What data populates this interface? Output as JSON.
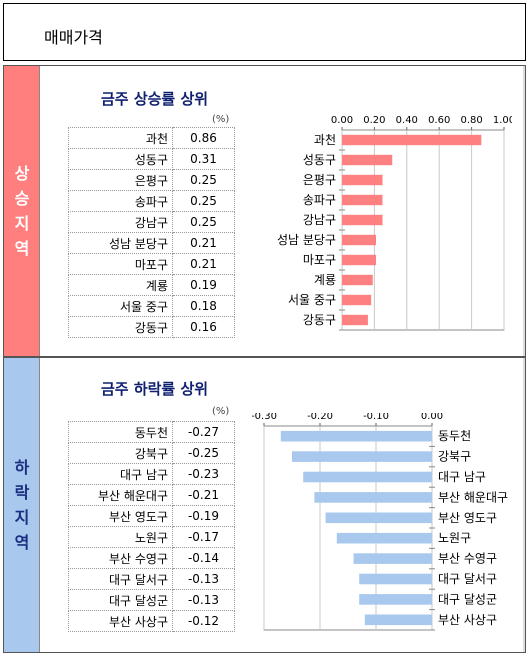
{
  "page_title": "매매가격",
  "rise": {
    "side_label": "상승지역",
    "title": "금주 상승률 상위",
    "unit": "(%)",
    "rows": [
      {
        "name": "과천",
        "value": "0.86"
      },
      {
        "name": "성동구",
        "value": "0.31"
      },
      {
        "name": "은평구",
        "value": "0.25"
      },
      {
        "name": "송파구",
        "value": "0.25"
      },
      {
        "name": "강남구",
        "value": "0.25"
      },
      {
        "name": "성남 분당구",
        "value": "0.21"
      },
      {
        "name": "마포구",
        "value": "0.21"
      },
      {
        "name": "계룡",
        "value": "0.19"
      },
      {
        "name": "서울 중구",
        "value": "0.18"
      },
      {
        "name": "강동구",
        "value": "0.16"
      }
    ]
  },
  "fall": {
    "side_label": "하락지역",
    "title": "금주 하락률 상위",
    "unit": "(%)",
    "rows": [
      {
        "name": "동두천",
        "value": "-0.27"
      },
      {
        "name": "강북구",
        "value": "-0.25"
      },
      {
        "name": "대구 남구",
        "value": "-0.23"
      },
      {
        "name": "부산 해운대구",
        "value": "-0.21"
      },
      {
        "name": "부산 영도구",
        "value": "-0.19"
      },
      {
        "name": "노원구",
        "value": "-0.17"
      },
      {
        "name": "부산 수영구",
        "value": "-0.14"
      },
      {
        "name": "대구 달서구",
        "value": "-0.13"
      },
      {
        "name": "대구 달성군",
        "value": "-0.13"
      },
      {
        "name": "부산 사상구",
        "value": "-0.12"
      }
    ]
  },
  "chart_data": [
    {
      "type": "bar",
      "orientation": "horizontal",
      "title": "",
      "categories": [
        "과천",
        "성동구",
        "은평구",
        "송파구",
        "강남구",
        "성남 분당구",
        "마포구",
        "계룡",
        "서울 중구",
        "강동구"
      ],
      "values": [
        0.86,
        0.31,
        0.25,
        0.25,
        0.25,
        0.21,
        0.21,
        0.19,
        0.18,
        0.16
      ],
      "xlim": [
        0,
        1.0
      ],
      "ticks": [
        "0.00",
        "0.20",
        "0.40",
        "0.60",
        "0.80",
        "1.00"
      ],
      "tick_values": [
        0,
        0.2,
        0.4,
        0.6,
        0.8,
        1.0
      ],
      "axis_position": "top",
      "grid": true,
      "color": "#ff8080"
    },
    {
      "type": "bar",
      "orientation": "horizontal",
      "title": "",
      "categories": [
        "동두천",
        "강북구",
        "대구 남구",
        "부산 해운대구",
        "부산 영도구",
        "노원구",
        "부산 수영구",
        "대구 달서구",
        "대구 달성군",
        "부산 사상구"
      ],
      "values": [
        -0.27,
        -0.25,
        -0.23,
        -0.21,
        -0.19,
        -0.17,
        -0.14,
        -0.13,
        -0.13,
        -0.12
      ],
      "xlim": [
        -0.3,
        0
      ],
      "ticks": [
        "-0.30",
        "-0.20",
        "-0.10",
        "0.00"
      ],
      "tick_values": [
        -0.3,
        -0.2,
        -0.1,
        0
      ],
      "axis_position": "top",
      "grid": true,
      "color": "#a8c8ee"
    }
  ]
}
